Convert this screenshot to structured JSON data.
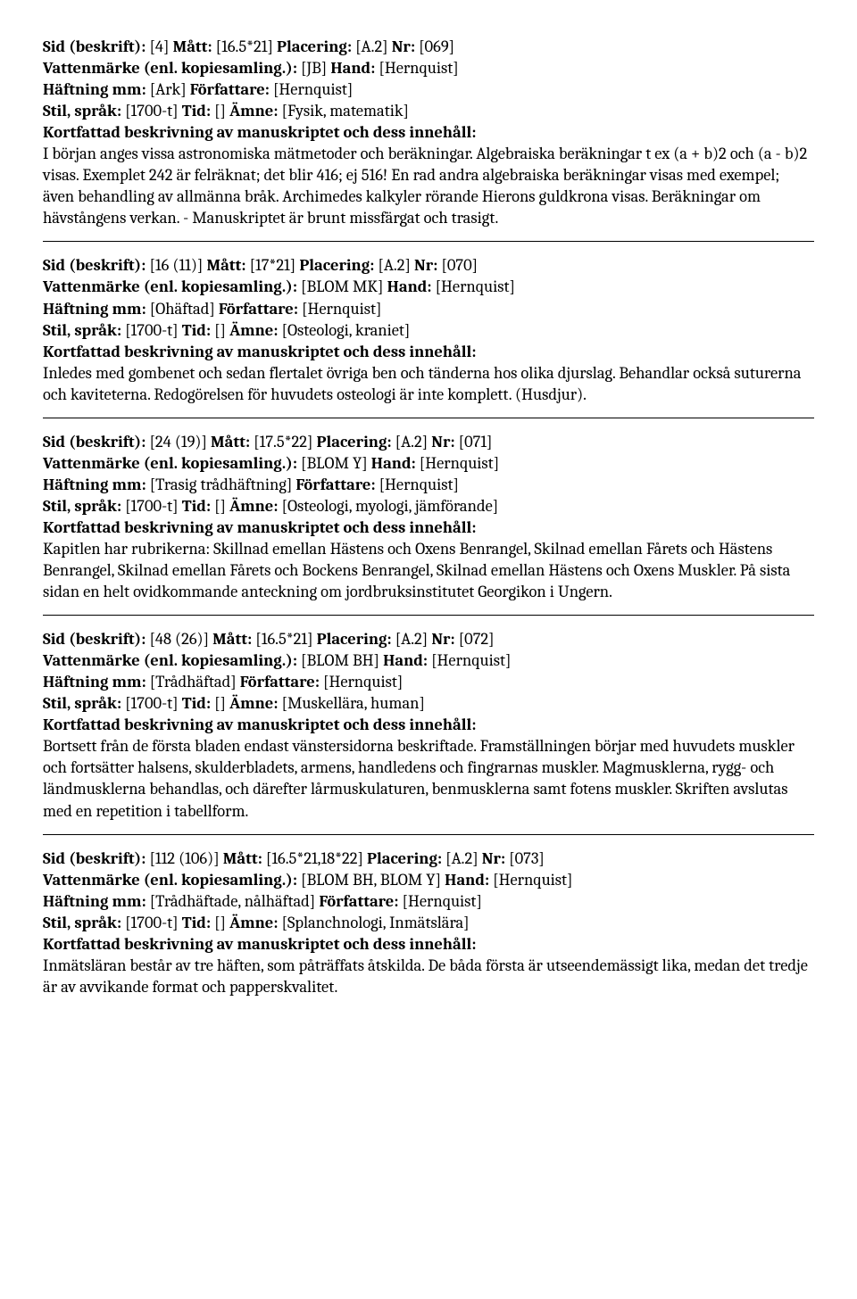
{
  "labels": {
    "sid": "Sid (beskrift):",
    "matt": "Mått:",
    "placering": "Placering:",
    "nr": "Nr:",
    "vattenmarke": "Vattenmärke (enl. kopiesamling.):",
    "hand": "Hand:",
    "haftning": "Häftning mm:",
    "forfattare": "Författare:",
    "stil": "Stil, språk:",
    "tid": "Tid:",
    "amne": "Ämne:",
    "desc_heading": "Kortfattad beskrivning av manuskriptet och dess innehåll:"
  },
  "records": [
    {
      "sid": "[4]",
      "matt": "[16.5*21]",
      "placering": "[A.2]",
      "nr": "[069]",
      "vattenmarke": "[JB]",
      "hand": "[Hernquist]",
      "haftning": "[Ark]",
      "forfattare": "[Hernquist]",
      "stil": "[1700-t]",
      "tid": "[]",
      "amne": "[Fysik, matematik]",
      "desc": "I början anges vissa astronomiska mätmetoder och beräkningar. Algebraiska beräkningar t ex (a + b)2 och (a - b)2 visas. Exemplet 242 är felräknat; det blir 416; ej 516! En rad andra algebraiska beräkningar visas med exempel; även behandling av allmänna bråk. Archimedes kalkyler rörande Hierons guldkrona visas. Beräkningar om hävstångens verkan. - Manuskriptet är brunt missfärgat och trasigt."
    },
    {
      "sid": "[16 (11)]",
      "matt": "[17*21]",
      "placering": "[A.2]",
      "nr": "[070]",
      "vattenmarke": "[BLOM MK]",
      "hand": "[Hernquist]",
      "haftning": "[Ohäftad]",
      "forfattare": "[Hernquist]",
      "stil": "[1700-t]",
      "tid": "[]",
      "amne": "[Osteologi, kraniet]",
      "desc": "Inledes med gombenet och sedan flertalet övriga ben och tänderna hos olika djurslag. Behandlar också suturerna och kaviteterna. Redogörelsen för huvudets osteologi är inte komplett. (Husdjur)."
    },
    {
      "sid": "[24 (19)]",
      "matt": "[17.5*22]",
      "placering": "[A.2]",
      "nr": "[071]",
      "vattenmarke": "[BLOM Y]",
      "hand": "[Hernquist]",
      "haftning": "[Trasig trådhäftning]",
      "forfattare": "[Hernquist]",
      "stil": "[1700-t]",
      "tid": "[]",
      "amne": "[Osteologi, myologi, jämförande]",
      "desc": "Kapitlen har rubrikerna: Skillnad emellan Hästens och Oxens Benrangel, Skilnad emellan Fårets och Hästens Benrangel, Skilnad emellan Fårets och Bockens Benrangel, Skilnad emellan Hästens och Oxens Muskler. På sista sidan en helt ovidkommande anteckning om jordbruksinstitutet Georgikon i Ungern."
    },
    {
      "sid": "[48 (26)]",
      "matt": "[16.5*21]",
      "placering": "[A.2]",
      "nr": "[072]",
      "vattenmarke": "[BLOM BH]",
      "hand": "[Hernquist]",
      "haftning": "[Trådhäftad]",
      "forfattare": "[Hernquist]",
      "stil": "[1700-t]",
      "tid": "[]",
      "amne": "[Muskellära, human]",
      "desc": "Bortsett från de första bladen endast vänstersidorna beskriftade. Framställningen börjar med huvudets muskler och fortsätter halsens, skulderbladets, armens, handledens och fingrarnas muskler. Magmusklerna, rygg- och ländmusklerna behandlas, och därefter lårmuskulaturen, benmusklerna samt fotens muskler. Skriften avslutas med en repetition i tabellform."
    },
    {
      "sid": "[112 (106)]",
      "matt": "[16.5*21,18*22]",
      "placering": "[A.2]",
      "nr": "[073]",
      "vattenmarke": "[BLOM BH, BLOM Y]",
      "hand": "[Hernquist]",
      "haftning": "[Trådhäftade, nålhäftad]",
      "forfattare": "[Hernquist]",
      "stil": "[1700-t]",
      "tid": "[]",
      "amne": "[Splanchnologi, Inmätslära]",
      "desc": "Inmätsläran består av tre häften, som påträffats åtskilda. De båda första är utseendemässigt lika, medan det tredje är av avvikande format och papperskvalitet."
    }
  ]
}
